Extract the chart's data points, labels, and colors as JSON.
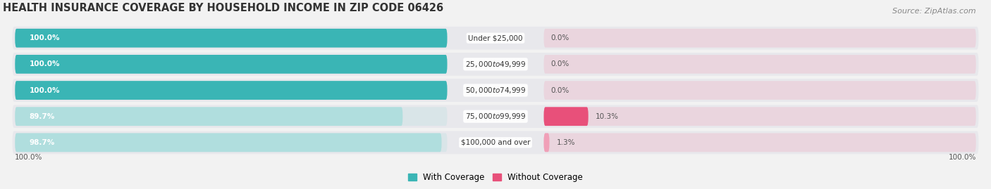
{
  "title": "HEALTH INSURANCE COVERAGE BY HOUSEHOLD INCOME IN ZIP CODE 06426",
  "source": "Source: ZipAtlas.com",
  "categories": [
    "Under $25,000",
    "$25,000 to $49,999",
    "$50,000 to $74,999",
    "$75,000 to $99,999",
    "$100,000 and over"
  ],
  "with_coverage": [
    100.0,
    100.0,
    100.0,
    89.7,
    98.7
  ],
  "without_coverage": [
    0.0,
    0.0,
    0.0,
    10.3,
    1.3
  ],
  "color_with_full": "#3ab5b5",
  "color_with_light": "#b0dede",
  "color_without_full": "#e8507a",
  "color_without_light": "#f0a0b8",
  "color_row_bg": "#e8e8ec",
  "bg_color": "#f2f2f2",
  "title_fontsize": 10.5,
  "source_fontsize": 8,
  "label_fontsize": 7.5,
  "bar_label_fontsize": 7.5,
  "legend_fontsize": 8.5,
  "x_axis_label_left": "100.0%",
  "x_axis_label_right": "100.0%"
}
